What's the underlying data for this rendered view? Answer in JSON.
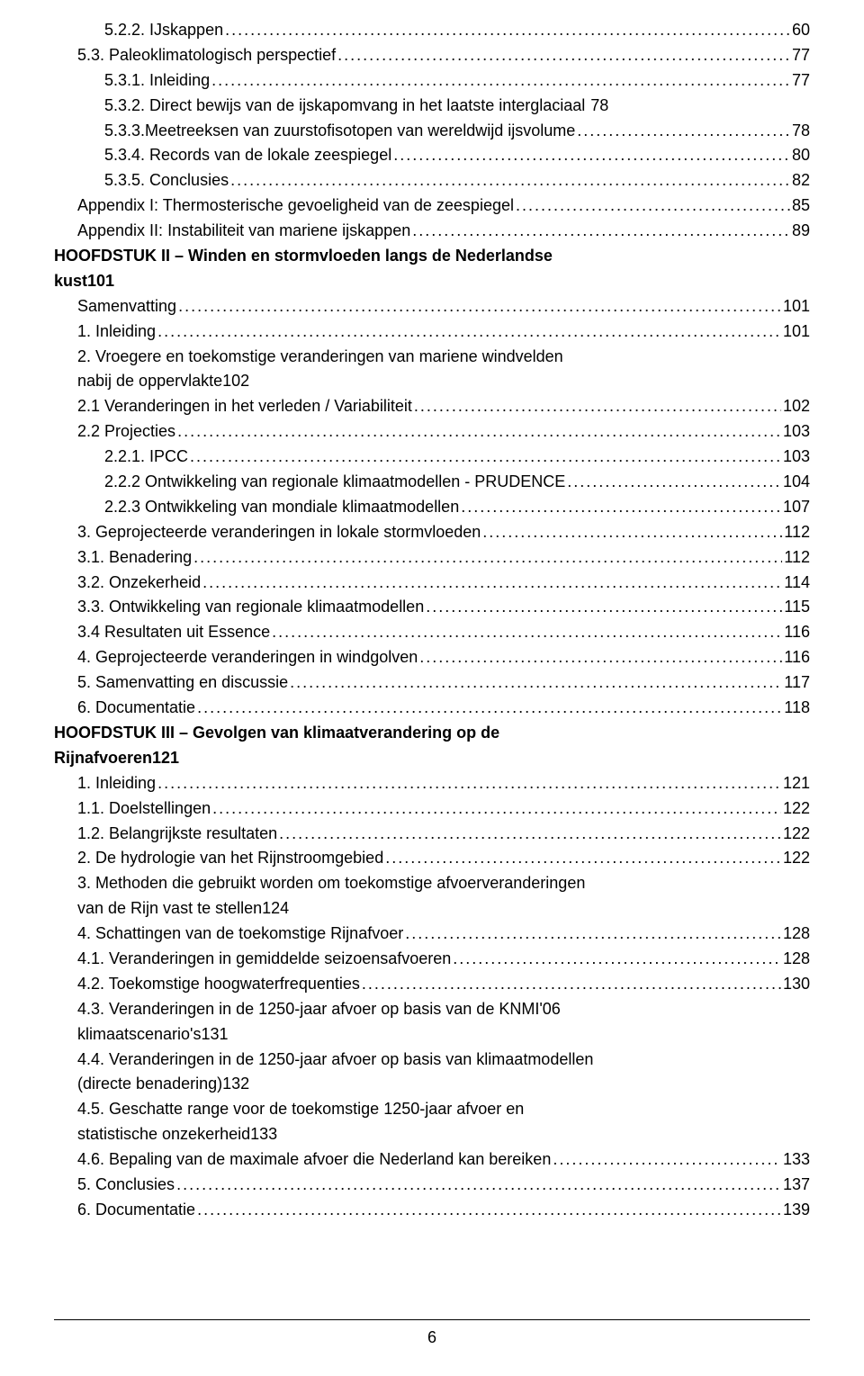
{
  "font_family": "Verdana",
  "text_color": "#000000",
  "background_color": "#ffffff",
  "page_number": "6",
  "entries": [
    {
      "indent": 2,
      "bold": false,
      "label": "5.2.2. IJskappen",
      "page": "60"
    },
    {
      "indent": 1,
      "bold": false,
      "label": "5.3. Paleoklimatologisch perspectief",
      "page": "77"
    },
    {
      "indent": 2,
      "bold": false,
      "label": "5.3.1. Inleiding",
      "page": "77"
    },
    {
      "indent": 2,
      "bold": false,
      "label": "5.3.2. Direct bewijs van de ijskapomvang in het laatste interglaciaal",
      "page": "78",
      "nolead": true
    },
    {
      "indent": 2,
      "bold": false,
      "label": "5.3.3.Meetreeksen van zuurstofisotopen van wereldwijd ijsvolume",
      "page": "78",
      "nolead": false
    },
    {
      "indent": 2,
      "bold": false,
      "label": "5.3.4. Records van de lokale zeespiegel",
      "page": "80"
    },
    {
      "indent": 2,
      "bold": false,
      "label": "5.3.5. Conclusies",
      "page": "82"
    },
    {
      "indent": 1,
      "bold": false,
      "label": "Appendix I: Thermosterische gevoeligheid van de zeespiegel",
      "page": "85"
    },
    {
      "indent": 1,
      "bold": false,
      "label": "Appendix II: Instabiliteit van mariene ijskappen",
      "page": "89"
    },
    {
      "indent": 0,
      "bold": true,
      "wrap": [
        "HOOFDSTUK II – Winden en stormvloeden langs de Nederlandse",
        "kust"
      ],
      "page": "101"
    },
    {
      "indent": 1,
      "bold": false,
      "label": "Samenvatting",
      "page": "101"
    },
    {
      "indent": 1,
      "bold": false,
      "label": "1. Inleiding",
      "page": "101"
    },
    {
      "indent": 1,
      "bold": false,
      "wrap": [
        "2. Vroegere en toekomstige veranderingen van mariene windvelden",
        "nabij de oppervlakte"
      ],
      "page": "102"
    },
    {
      "indent": 1,
      "bold": false,
      "label": "2.1 Veranderingen in het verleden / Variabiliteit",
      "page": "102"
    },
    {
      "indent": 1,
      "bold": false,
      "label": "2.2 Projecties",
      "page": "103"
    },
    {
      "indent": 2,
      "bold": false,
      "label": "2.2.1. IPCC",
      "page": "103"
    },
    {
      "indent": 2,
      "bold": false,
      "label": "2.2.2 Ontwikkeling van regionale klimaatmodellen - PRUDENCE",
      "page": "104"
    },
    {
      "indent": 2,
      "bold": false,
      "label": "2.2.3 Ontwikkeling van mondiale klimaatmodellen",
      "page": "107"
    },
    {
      "indent": 1,
      "bold": false,
      "label": "3. Geprojecteerde veranderingen in lokale stormvloeden",
      "page": "112"
    },
    {
      "indent": 1,
      "bold": false,
      "label": "3.1. Benadering",
      "page": "112"
    },
    {
      "indent": 1,
      "bold": false,
      "label": "3.2. Onzekerheid",
      "page": "114"
    },
    {
      "indent": 1,
      "bold": false,
      "label": "3.3. Ontwikkeling van regionale klimaatmodellen",
      "page": "115"
    },
    {
      "indent": 1,
      "bold": false,
      "label": "3.4 Resultaten uit Essence",
      "page": "116"
    },
    {
      "indent": 1,
      "bold": false,
      "label": "4. Geprojecteerde veranderingen in windgolven",
      "page": "116"
    },
    {
      "indent": 1,
      "bold": false,
      "label": "5. Samenvatting en discussie",
      "page": "117"
    },
    {
      "indent": 1,
      "bold": false,
      "label": "6. Documentatie",
      "page": "118"
    },
    {
      "indent": 0,
      "bold": true,
      "wrap": [
        "HOOFDSTUK III – Gevolgen van klimaatverandering op de",
        "Rijnafvoeren"
      ],
      "page": "121"
    },
    {
      "indent": 1,
      "bold": false,
      "label": "1. Inleiding",
      "page": "121"
    },
    {
      "indent": 1,
      "bold": false,
      "label": "1.1. Doelstellingen",
      "page": "122"
    },
    {
      "indent": 1,
      "bold": false,
      "label": "1.2. Belangrijkste resultaten",
      "page": "122"
    },
    {
      "indent": 1,
      "bold": false,
      "label": "2. De hydrologie van het Rijnstroomgebied",
      "page": "122"
    },
    {
      "indent": 1,
      "bold": false,
      "wrap": [
        "3.  Methoden die gebruikt worden om toekomstige afvoerveranderingen",
        "van de Rijn vast te stellen"
      ],
      "page": "124"
    },
    {
      "indent": 1,
      "bold": false,
      "label": "4. Schattingen van de toekomstige Rijnafvoer",
      "page": "128"
    },
    {
      "indent": 1,
      "bold": false,
      "label": "4.1. Veranderingen in gemiddelde seizoensafvoeren",
      "page": "128"
    },
    {
      "indent": 1,
      "bold": false,
      "label": "4.2. Toekomstige hoogwaterfrequenties",
      "page": "130"
    },
    {
      "indent": 1,
      "bold": false,
      "wrap": [
        "4.3. Veranderingen in de 1250-jaar afvoer op basis van de KNMI'06",
        "klimaatscenario's"
      ],
      "page": "131"
    },
    {
      "indent": 1,
      "bold": false,
      "wrap": [
        "4.4. Veranderingen in de 1250-jaar afvoer op basis van klimaatmodellen",
        "(directe benadering)"
      ],
      "page": "132"
    },
    {
      "indent": 1,
      "bold": false,
      "wrap": [
        "4.5. Geschatte range voor de toekomstige 1250-jaar afvoer en",
        "statistische onzekerheid"
      ],
      "page": "133"
    },
    {
      "indent": 1,
      "bold": false,
      "label": "4.6. Bepaling van de maximale afvoer die Nederland kan bereiken",
      "page": "133"
    },
    {
      "indent": 1,
      "bold": false,
      "label": "5. Conclusies",
      "page": "137"
    },
    {
      "indent": 1,
      "bold": false,
      "label": "6. Documentatie",
      "page": "139"
    }
  ]
}
